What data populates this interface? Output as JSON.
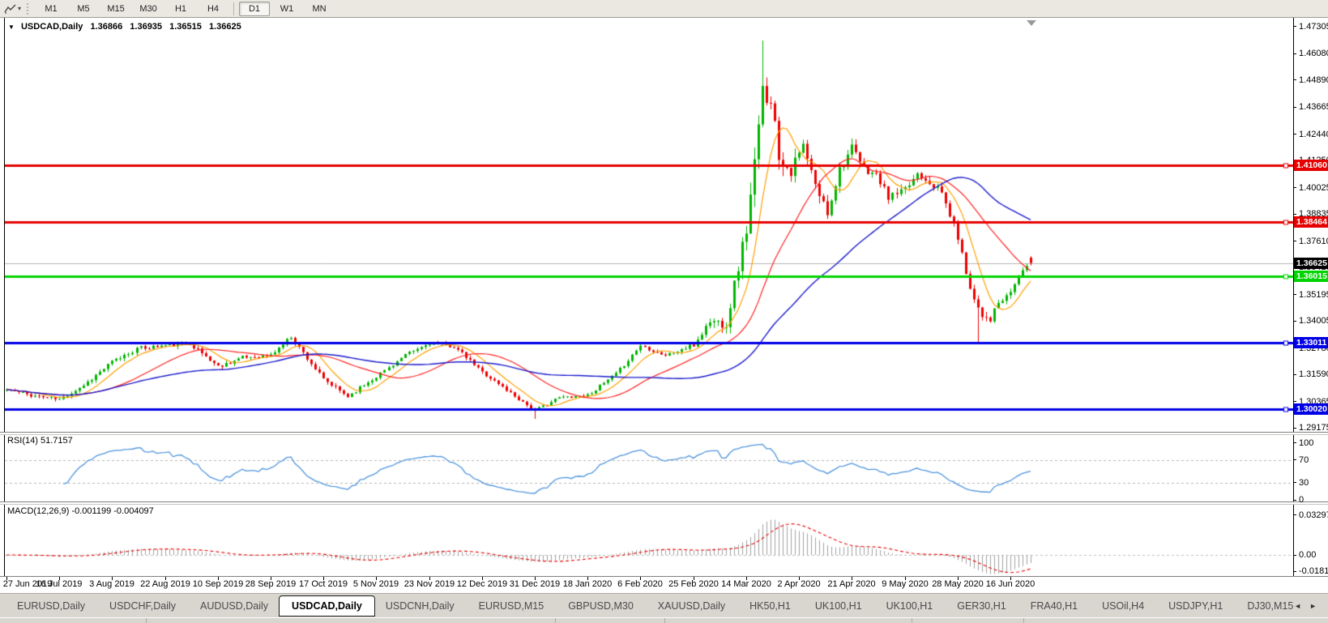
{
  "toolbar": {
    "caret": "▾",
    "timeframes": [
      {
        "label": "M1",
        "selected": false
      },
      {
        "label": "M5",
        "selected": false
      },
      {
        "label": "M15",
        "selected": false
      },
      {
        "label": "M30",
        "selected": false
      },
      {
        "label": "H1",
        "selected": false
      },
      {
        "label": "H4",
        "selected": false
      },
      {
        "label": "D1",
        "selected": true,
        "sep_before": true
      },
      {
        "label": "W1",
        "selected": false
      },
      {
        "label": "MN",
        "selected": false
      }
    ]
  },
  "main_chart": {
    "collapse_marker": "▼",
    "symbol": "USDCAD,Daily",
    "ohlc": {
      "open": "1.36866",
      "high": "1.36935",
      "low": "1.36515",
      "close": "1.36625"
    },
    "axis_ticks": [
      "1.47305",
      "1.46080",
      "1.44890",
      "1.43665",
      "1.42440",
      "1.41250",
      "1.40025",
      "1.38835",
      "1.37610",
      "1.36420",
      "1.35195",
      "1.34005",
      "1.32780",
      "1.31590",
      "1.30365",
      "1.29175"
    ],
    "levels": [
      {
        "value": 1.4106,
        "label": "1.41060",
        "color": "#e60000",
        "width": 3
      },
      {
        "value": 1.38464,
        "label": "1.38464",
        "color": "#e60000",
        "width": 3
      },
      {
        "value": 1.36015,
        "label": "1.36015",
        "color": "#00d400",
        "width": 3
      },
      {
        "value": 1.33011,
        "label": "1.33011",
        "color": "#0000e6",
        "width": 3
      },
      {
        "value": 1.3002,
        "label": "1.30020",
        "color": "#0000e6",
        "width": 3
      }
    ],
    "current_price": {
      "value": 1.36625,
      "label": "1.36625",
      "badge_color": "#000000",
      "line_color": "#b4b4b4"
    }
  },
  "rsi_panel": {
    "label": "RSI(14) 51.7157",
    "ticks": [
      "100",
      "70",
      "30",
      "0"
    ],
    "levels": [
      70,
      30
    ],
    "line_color": "#4f94dd"
  },
  "macd_panel": {
    "label": "MACD(12,26,9) -0.001199 -0.004097",
    "ticks": [
      "0.032972",
      "0.00",
      "-0.018154"
    ],
    "hist_color": "#a0a0a0",
    "signal_color": "#e60000"
  },
  "x_axis": {
    "labels": [
      "27 Jun 2019",
      "16 Jul 2019",
      "3 Aug 2019",
      "22 Aug 2019",
      "10 Sep 2019",
      "28 Sep 2019",
      "17 Oct 2019",
      "5 Nov 2019",
      "23 Nov 2019",
      "12 Dec 2019",
      "31 Dec 2019",
      "18 Jan 2020",
      "6 Feb 2020",
      "25 Feb 2020",
      "14 Mar 2020",
      "2 Apr 2020",
      "21 Apr 2020",
      "9 May 2020",
      "28 May 2020",
      "16 Jun 2020"
    ]
  },
  "tab_bar": {
    "scroll_left": "◄",
    "scroll_right": "►",
    "tabs": [
      {
        "label": "EURUSD,Daily",
        "active": false
      },
      {
        "label": "USDCHF,Daily",
        "active": false
      },
      {
        "label": "AUDUSD,Daily",
        "active": false
      },
      {
        "label": "USDCAD,Daily",
        "active": true
      },
      {
        "label": "USDCNH,Daily",
        "active": false
      },
      {
        "label": "EURUSD,M15",
        "active": false
      },
      {
        "label": "GBPUSD,M30",
        "active": false
      },
      {
        "label": "XAUUSD,Daily",
        "active": false
      },
      {
        "label": "HK50,H1",
        "active": false
      },
      {
        "label": "UK100,H1",
        "active": false
      },
      {
        "label": "UK100,H1",
        "active": false
      },
      {
        "label": "GER30,H1",
        "active": false
      },
      {
        "label": "FRA40,H1",
        "active": false
      },
      {
        "label": "USOil,H4",
        "active": false
      },
      {
        "label": "USDJPY,H1",
        "active": false
      },
      {
        "label": "DJ30,M15",
        "active": false
      }
    ]
  },
  "chart_data": {
    "type": "candlestick",
    "symbol": "USDCAD",
    "timeframe": "Daily",
    "title": "USDCAD,Daily",
    "last_bar": {
      "open": 1.36866,
      "high": 1.36935,
      "low": 1.36515,
      "close": 1.36625
    },
    "bar_count": 253,
    "bars_per_x_label": 13,
    "seed": 11,
    "up_color": "#00b400",
    "down_color": "#ee0000",
    "price_range_top": 1.47671,
    "price_range_bottom": 1.28995,
    "anchors": [
      [
        0,
        1.309,
        0.0022
      ],
      [
        6,
        1.3065,
        0.002
      ],
      [
        13,
        1.3045,
        0.002
      ],
      [
        19,
        1.311,
        0.0022
      ],
      [
        26,
        1.3215,
        0.0024
      ],
      [
        32,
        1.3275,
        0.0024
      ],
      [
        39,
        1.329,
        0.0026
      ],
      [
        45,
        1.33,
        0.0024
      ],
      [
        52,
        1.3195,
        0.0024
      ],
      [
        58,
        1.3235,
        0.0022
      ],
      [
        65,
        1.3245,
        0.0022
      ],
      [
        70,
        1.333,
        0.0022
      ],
      [
        78,
        1.3135,
        0.0024
      ],
      [
        84,
        1.306,
        0.0022
      ],
      [
        91,
        1.315,
        0.002
      ],
      [
        98,
        1.3245,
        0.002
      ],
      [
        104,
        1.33,
        0.002
      ],
      [
        110,
        1.3285,
        0.002
      ],
      [
        117,
        1.317,
        0.002
      ],
      [
        124,
        1.3075,
        0.0018
      ],
      [
        130,
        1.2995,
        0.0018
      ],
      [
        136,
        1.3055,
        0.0016
      ],
      [
        143,
        1.3065,
        0.0016
      ],
      [
        150,
        1.316,
        0.0018
      ],
      [
        156,
        1.329,
        0.002
      ],
      [
        162,
        1.3245,
        0.002
      ],
      [
        169,
        1.329,
        0.0028
      ],
      [
        173,
        1.34,
        0.004
      ],
      [
        177,
        1.339,
        0.006
      ],
      [
        180,
        1.365,
        0.0085
      ],
      [
        182,
        1.382,
        0.01
      ],
      [
        184,
        1.41,
        0.012
      ],
      [
        186,
        1.443,
        0.013
      ],
      [
        188,
        1.442,
        0.011
      ],
      [
        190,
        1.415,
        0.0095
      ],
      [
        193,
        1.408,
        0.0075
      ],
      [
        196,
        1.419,
        0.0065
      ],
      [
        199,
        1.401,
        0.0058
      ],
      [
        202,
        1.389,
        0.0052
      ],
      [
        205,
        1.409,
        0.005
      ],
      [
        208,
        1.418,
        0.0048
      ],
      [
        211,
        1.409,
        0.0044
      ],
      [
        214,
        1.406,
        0.004
      ],
      [
        217,
        1.396,
        0.004
      ],
      [
        221,
        1.399,
        0.0038
      ],
      [
        224,
        1.407,
        0.0036
      ],
      [
        227,
        1.403,
        0.0034
      ],
      [
        230,
        1.398,
        0.0034
      ],
      [
        234,
        1.378,
        0.0036
      ],
      [
        236,
        1.362,
        0.004
      ],
      [
        238,
        1.35,
        0.004
      ],
      [
        240,
        1.343,
        0.004
      ],
      [
        242,
        1.341,
        0.0038
      ],
      [
        244,
        1.348,
        0.0034
      ],
      [
        246,
        1.3505,
        0.003
      ],
      [
        248,
        1.3565,
        0.0028
      ],
      [
        250,
        1.3635,
        0.0026
      ],
      [
        252,
        1.36625,
        0.0024
      ]
    ],
    "overrides": [
      {
        "i": 186,
        "high": 1.4668
      },
      {
        "i": 239,
        "low": 1.3302
      },
      {
        "i": 130,
        "low": 1.2958
      },
      {
        "i": 252,
        "open": 1.36866,
        "high": 1.36935,
        "low": 1.36515,
        "close": 1.36625
      }
    ],
    "moving_averages": [
      {
        "period": 8,
        "color": "#ff9f00",
        "width": 1.2
      },
      {
        "period": 24,
        "color": "#ff2222",
        "width": 1.2
      },
      {
        "period": 55,
        "color": "#1a1acc",
        "width": 1.4
      }
    ],
    "rsi": {
      "period": 14,
      "current": 51.7157,
      "scale_ticks": [
        100,
        70,
        30,
        0
      ],
      "dashed_levels": [
        70,
        30
      ]
    },
    "macd": {
      "fast": 12,
      "slow": 26,
      "signal": 9,
      "current": -0.001199,
      "current_signal": -0.004097,
      "scale_ticks": [
        0.032972,
        0.0,
        -0.018154
      ]
    }
  }
}
